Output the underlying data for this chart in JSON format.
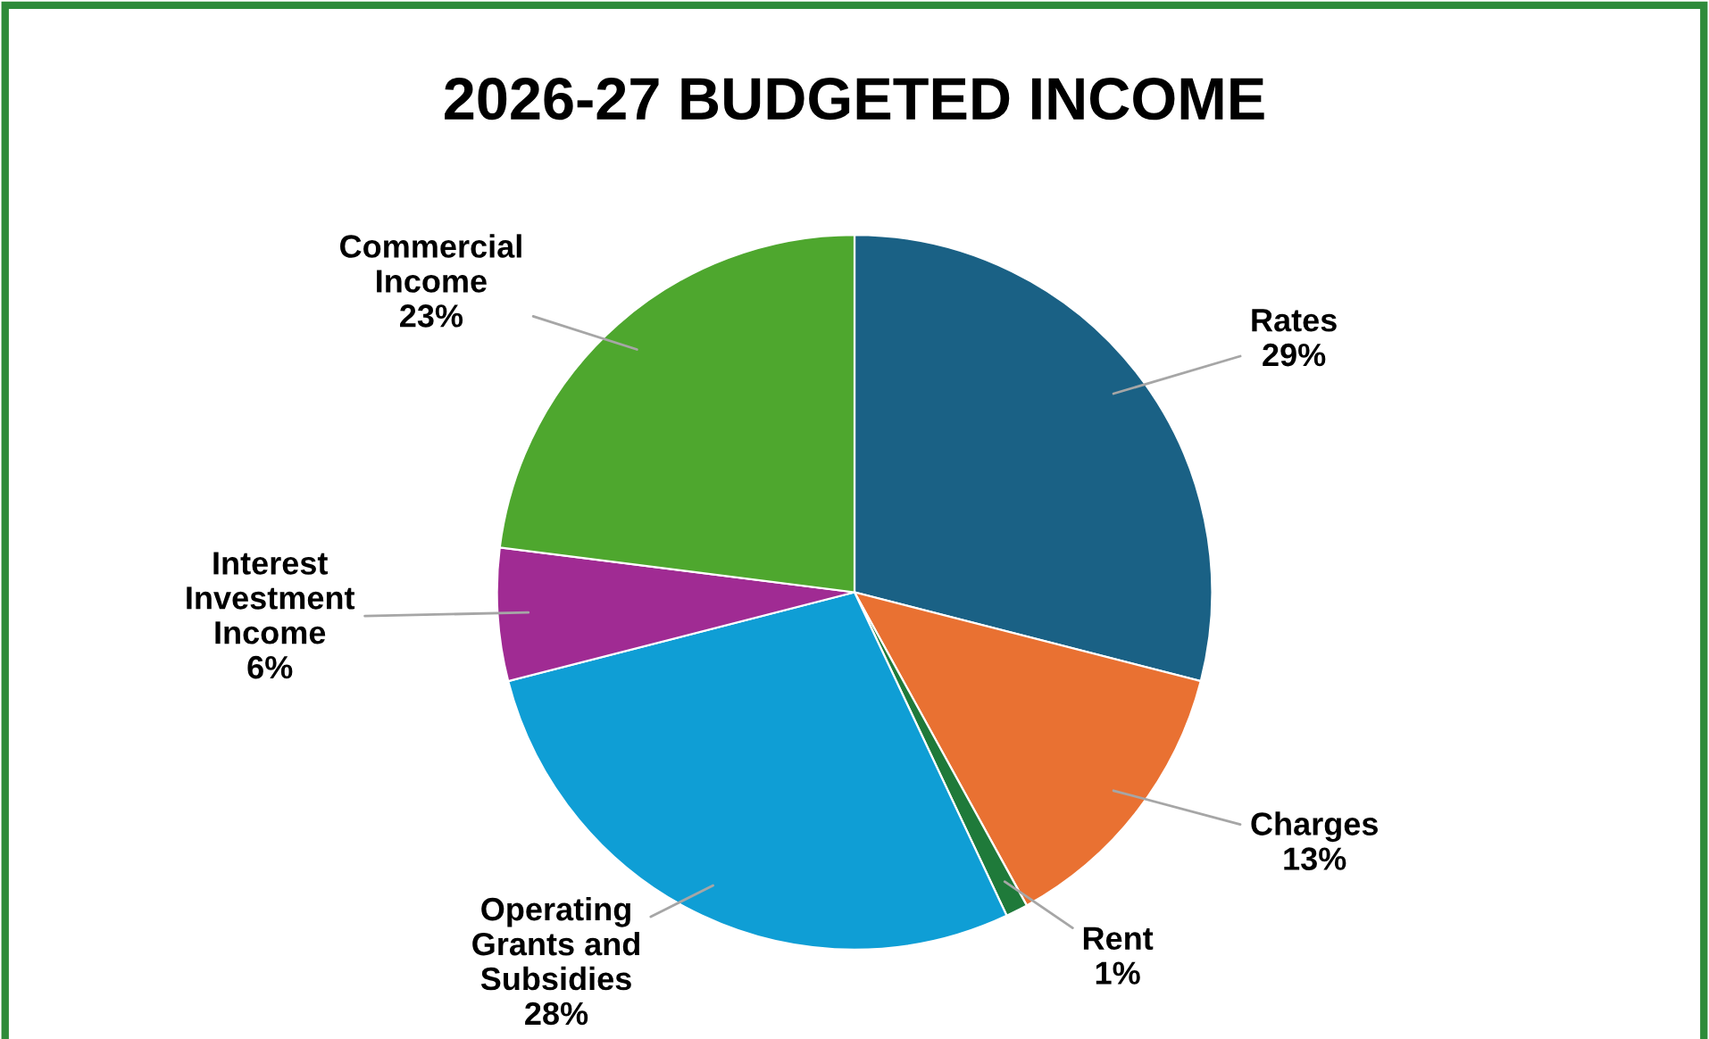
{
  "chart_data": {
    "type": "pie",
    "title": "2026-27 BUDGETED INCOME",
    "categories": [
      "Rates",
      "Charges",
      "Rent",
      "Operating Grants and Subsidies",
      "Interest Investment Income",
      "Commercial Income"
    ],
    "values": [
      29,
      13,
      1,
      28,
      6,
      23
    ],
    "value_labels": [
      "29%",
      "13%",
      "1%",
      "28%",
      "6%",
      "23%"
    ],
    "colors": [
      "#1a6185",
      "#e97132",
      "#1f7a3a",
      "#0f9ed5",
      "#a02b93",
      "#4ea72e"
    ]
  }
}
